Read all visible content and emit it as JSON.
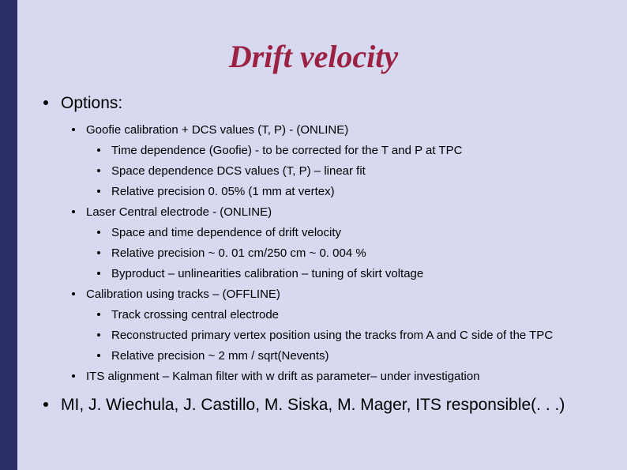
{
  "title": "Drift velocity",
  "options_label": "Options:",
  "opt1": {
    "label": "Goofie calibration + DCS values (T, P) - (ONLINE)",
    "sub1": "Time dependence (Goofie) -  to be corrected for the T and P at TPC",
    "sub2": "Space dependence DCS values (T, P) – linear fit",
    "sub3": "Relative precision 0. 05% (1 mm at vertex)"
  },
  "opt2": {
    "label": "Laser Central electrode  - (ONLINE)",
    "sub1": "Space and time dependence of drift velocity",
    "sub2": "Relative precision ~ 0. 01 cm/250 cm ~ 0. 004 %",
    "sub3": "Byproduct – unlinearities calibration – tuning of skirt voltage"
  },
  "opt3": {
    "label": "Calibration using tracks – (OFFLINE)",
    "sub1": "Track crossing central electrode",
    "sub2": "Reconstructed primary vertex position using the tracks from A and C side of the TPC",
    "sub3": "Relative precision ~ 2 mm / sqrt(Nevents)"
  },
  "opt4": {
    "label": "ITS alignment – Kalman filter with w drift as parameter– under investigation"
  },
  "credits": "MI, J. Wiechula, J. Castillo, M. Siska, M. Mager,    ITS responsible(. . .)",
  "colors": {
    "background": "#d6d9f0",
    "sidebar": "#2c2e6a",
    "title": "#9b2242",
    "text": "#000000"
  }
}
